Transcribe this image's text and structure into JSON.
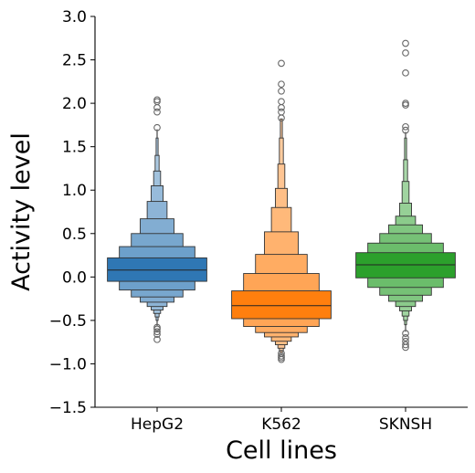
{
  "chart_data": {
    "type": "boxen",
    "title": "",
    "xlabel": "Cell lines",
    "ylabel": "Activity level",
    "ylim": [
      -1.5,
      3.0
    ],
    "yticks": [
      -1.5,
      -1.0,
      -0.5,
      0.0,
      0.5,
      1.0,
      1.5,
      2.0,
      2.5,
      3.0
    ],
    "ytick_labels": [
      "−1.5",
      "−1.0",
      "−0.5",
      "0.0",
      "0.5",
      "1.0",
      "1.5",
      "2.0",
      "2.5",
      "3.0"
    ],
    "categories": [
      "HepG2",
      "K562",
      "SKNSH"
    ],
    "grid": false,
    "legend": "none",
    "series": [
      {
        "category": "HepG2",
        "color": "#2f77b4",
        "median": 0.08,
        "boxes": [
          {
            "lo": -0.05,
            "hi": 0.22,
            "w": 1.0
          },
          {
            "lo": -0.15,
            "hi": 0.35,
            "w": 0.76
          },
          {
            "lo": -0.23,
            "hi": 0.5,
            "w": 0.52
          },
          {
            "lo": -0.29,
            "hi": 0.67,
            "w": 0.34
          },
          {
            "lo": -0.34,
            "hi": 0.87,
            "w": 0.2
          },
          {
            "lo": -0.38,
            "hi": 1.05,
            "w": 0.12
          },
          {
            "lo": -0.42,
            "hi": 1.22,
            "w": 0.07
          },
          {
            "lo": -0.46,
            "hi": 1.4,
            "w": 0.04
          },
          {
            "lo": -0.5,
            "hi": 1.6,
            "w": 0.02
          }
        ],
        "outliers": [
          2.04,
          2.02,
          1.95,
          1.9,
          1.72,
          -0.58,
          -0.6,
          -0.63,
          -0.66,
          -0.72
        ]
      },
      {
        "category": "K562",
        "color": "#ff7f0e",
        "median": -0.33,
        "boxes": [
          {
            "lo": -0.48,
            "hi": -0.16,
            "w": 1.0
          },
          {
            "lo": -0.57,
            "hi": 0.04,
            "w": 0.76
          },
          {
            "lo": -0.64,
            "hi": 0.26,
            "w": 0.52
          },
          {
            "lo": -0.69,
            "hi": 0.52,
            "w": 0.34
          },
          {
            "lo": -0.74,
            "hi": 0.8,
            "w": 0.2
          },
          {
            "lo": -0.78,
            "hi": 1.02,
            "w": 0.12
          },
          {
            "lo": -0.82,
            "hi": 1.3,
            "w": 0.07
          },
          {
            "lo": -0.85,
            "hi": 1.6,
            "w": 0.04
          },
          {
            "lo": -0.88,
            "hi": 1.82,
            "w": 0.02
          }
        ],
        "outliers": [
          2.46,
          2.22,
          2.14,
          2.02,
          1.95,
          1.9,
          1.83,
          -0.88,
          -0.91,
          -0.93,
          -0.95
        ]
      },
      {
        "category": "SKNSH",
        "color": "#2ca02c",
        "median": 0.14,
        "boxes": [
          {
            "lo": -0.01,
            "hi": 0.28,
            "w": 1.0
          },
          {
            "lo": -0.12,
            "hi": 0.39,
            "w": 0.76
          },
          {
            "lo": -0.21,
            "hi": 0.5,
            "w": 0.52
          },
          {
            "lo": -0.28,
            "hi": 0.6,
            "w": 0.34
          },
          {
            "lo": -0.34,
            "hi": 0.7,
            "w": 0.2
          },
          {
            "lo": -0.39,
            "hi": 0.85,
            "w": 0.12
          },
          {
            "lo": -0.45,
            "hi": 1.1,
            "w": 0.07
          },
          {
            "lo": -0.5,
            "hi": 1.35,
            "w": 0.04
          },
          {
            "lo": -0.55,
            "hi": 1.6,
            "w": 0.02
          }
        ],
        "outliers": [
          2.69,
          2.58,
          2.35,
          2.0,
          1.98,
          1.73,
          1.69,
          -0.65,
          -0.7,
          -0.74,
          -0.78,
          -0.81
        ]
      }
    ]
  }
}
